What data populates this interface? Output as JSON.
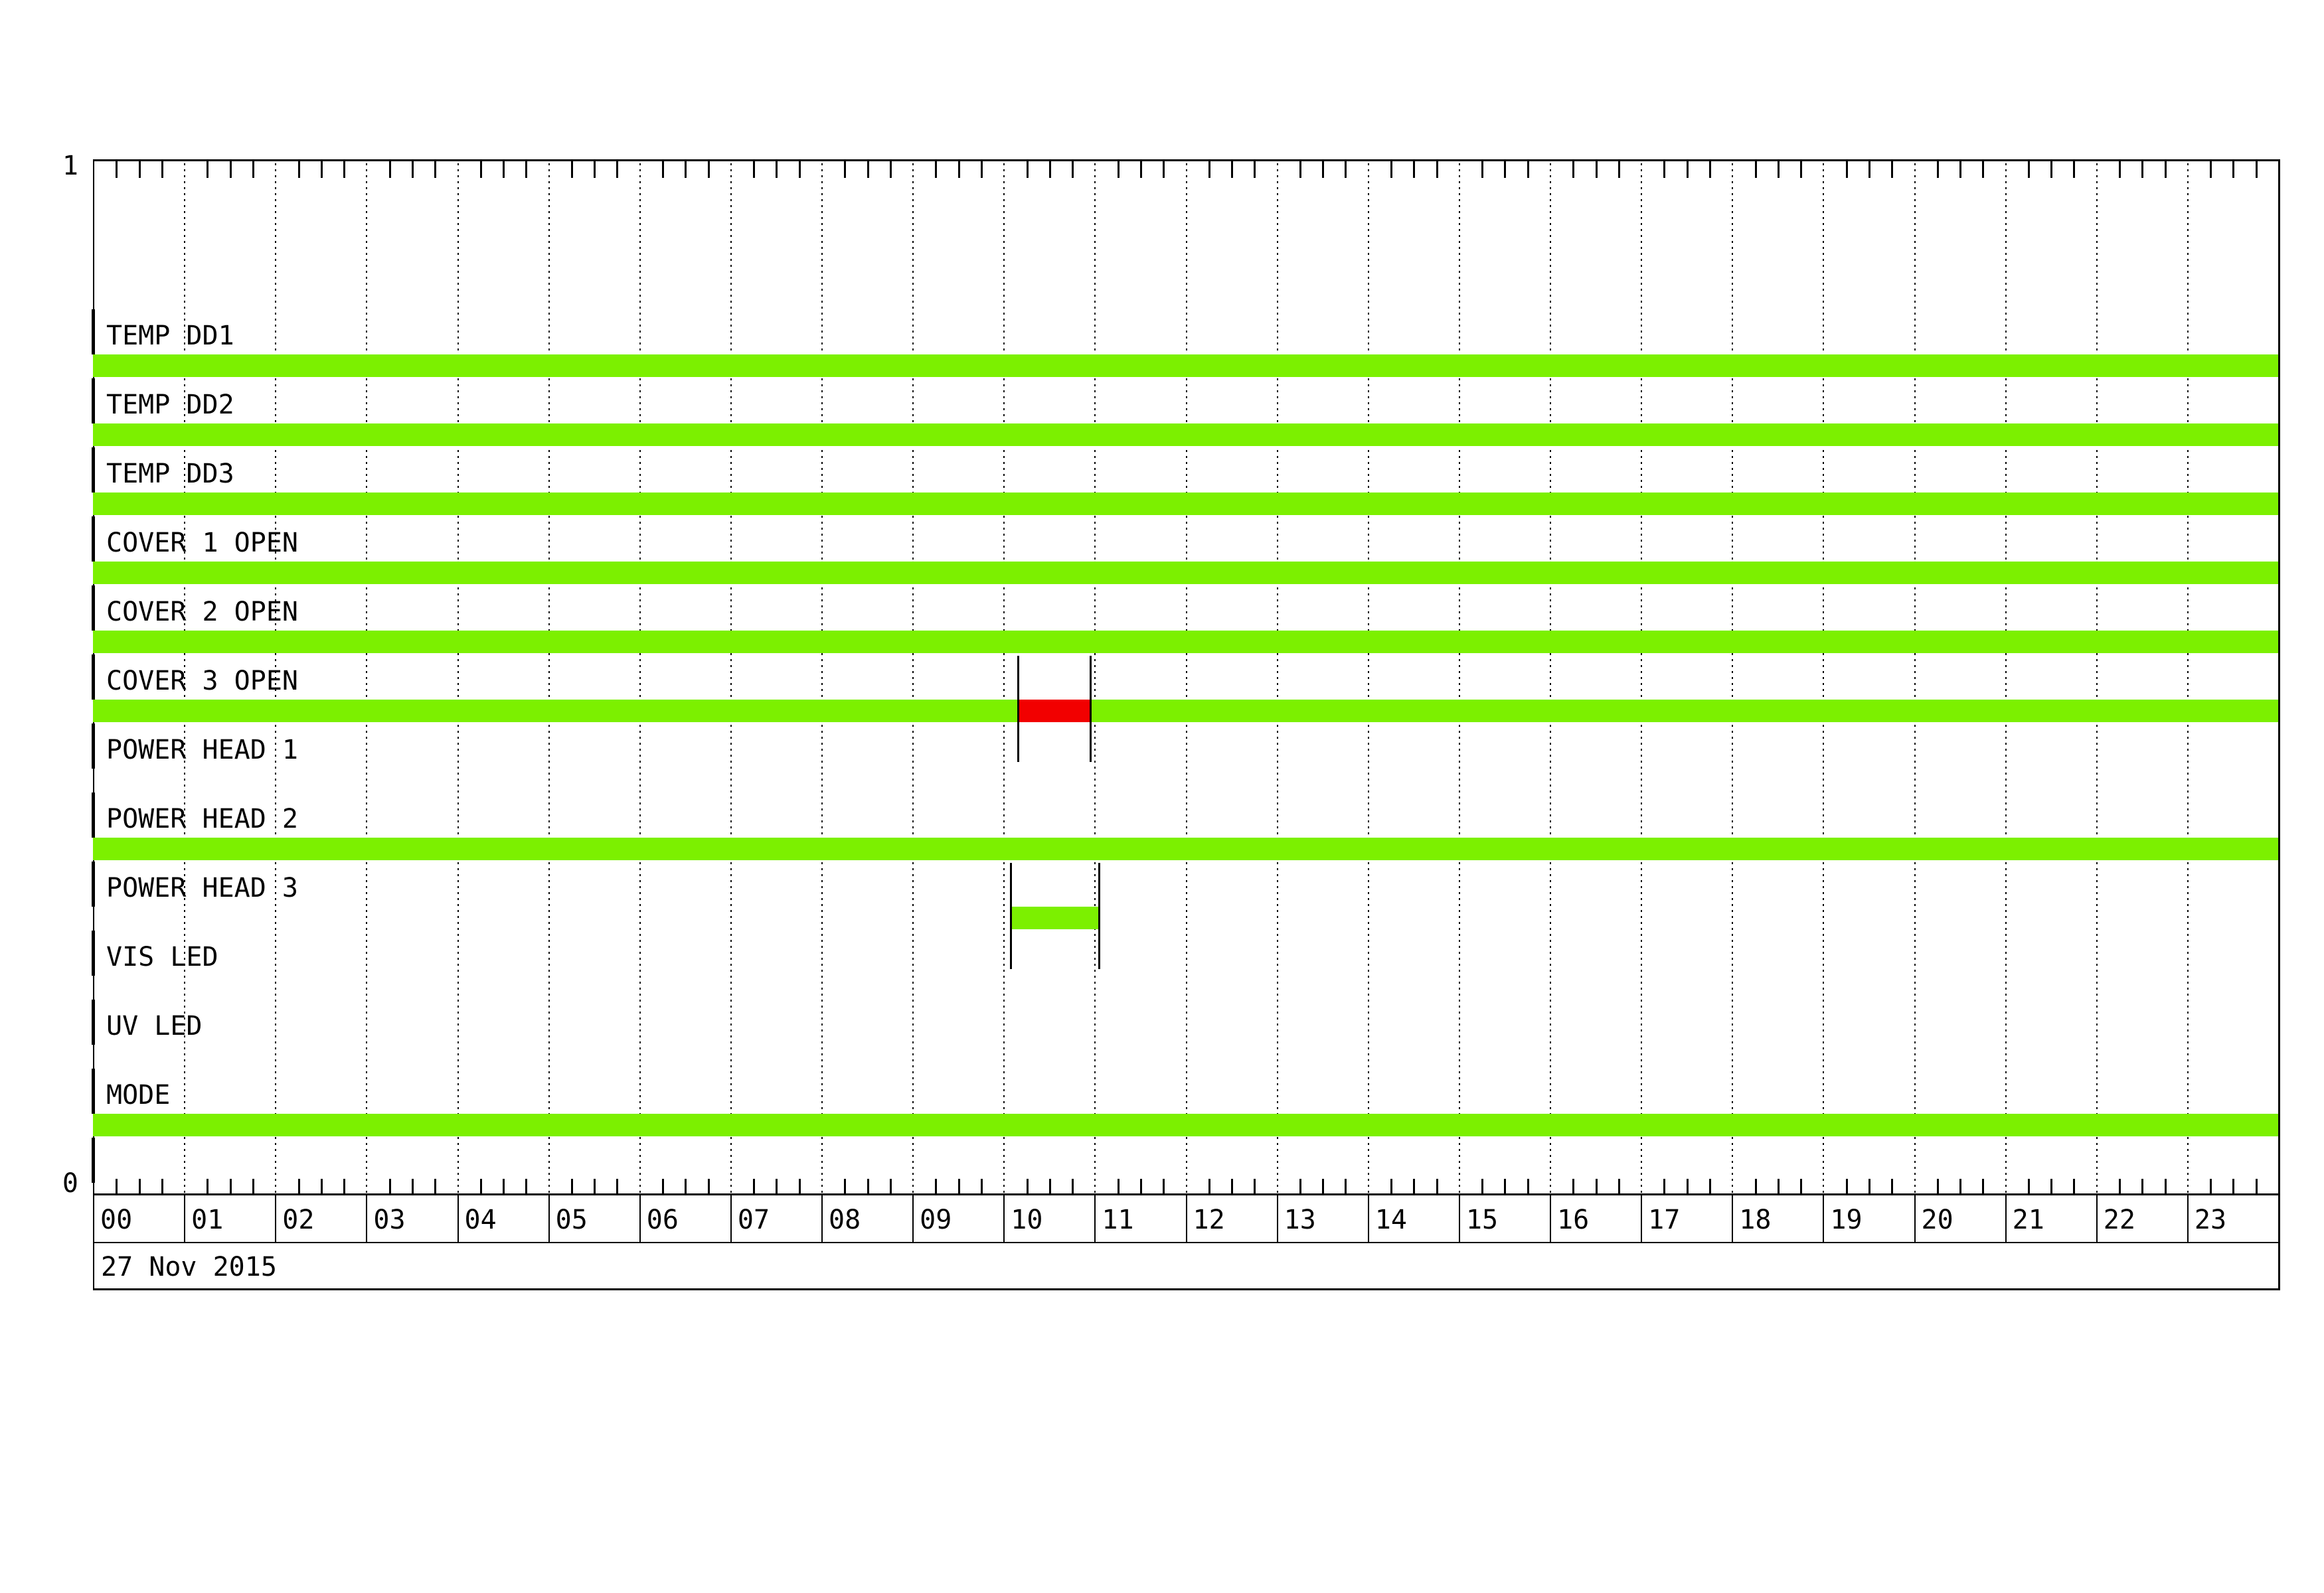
{
  "meta": {
    "background_color": "#ffffff",
    "description": "Daily digital status timeline chart, 12 instrument channels over 24 hours"
  },
  "axis": {
    "y_max_label": "1",
    "y_min_label": "0"
  },
  "colors": {
    "on_green": "#7cf000",
    "alarm_red": "#f20000",
    "grid": "#000000",
    "axis": "#000000"
  },
  "chart_data": {
    "type": "bar",
    "subtype": "digital-status-timeline",
    "title": "",
    "xlabel": "",
    "ylabel": "",
    "date": "27 Nov 2015",
    "x_unit": "hour of day",
    "xlim": [
      0,
      24
    ],
    "ylim": [
      0,
      1
    ],
    "y_tick_labels": [
      "0",
      "1"
    ],
    "x_tick_labels": [
      "00",
      "01",
      "02",
      "03",
      "04",
      "05",
      "06",
      "07",
      "08",
      "09",
      "10",
      "11",
      "12",
      "13",
      "14",
      "15",
      "16",
      "17",
      "18",
      "19",
      "20",
      "21",
      "22",
      "23"
    ],
    "x_minor_tick_minutes": 15,
    "grid": "hourly dotted vertical gridlines",
    "legend": "none",
    "rows": [
      {
        "label": "TEMP DD1",
        "segments": [
          {
            "start_hour": 0,
            "end_hour": 24,
            "color": "green"
          }
        ]
      },
      {
        "label": "TEMP DD2",
        "segments": [
          {
            "start_hour": 0,
            "end_hour": 24,
            "color": "green"
          }
        ]
      },
      {
        "label": "TEMP DD3",
        "segments": [
          {
            "start_hour": 0,
            "end_hour": 24,
            "color": "green"
          }
        ]
      },
      {
        "label": "COVER 1 OPEN",
        "segments": [
          {
            "start_hour": 0,
            "end_hour": 24,
            "color": "green"
          }
        ]
      },
      {
        "label": "COVER 2 OPEN",
        "segments": [
          {
            "start_hour": 0,
            "end_hour": 24,
            "color": "green"
          }
        ]
      },
      {
        "label": "COVER 3 OPEN",
        "segments": [
          {
            "start_hour": 0,
            "end_hour": 10.16,
            "color": "green"
          },
          {
            "start_hour": 10.16,
            "end_hour": 10.96,
            "color": "red"
          },
          {
            "start_hour": 10.96,
            "end_hour": 24,
            "color": "green"
          }
        ]
      },
      {
        "label": "POWER HEAD 1",
        "segments": []
      },
      {
        "label": "POWER HEAD 2",
        "segments": [
          {
            "start_hour": 0,
            "end_hour": 24,
            "color": "green"
          }
        ]
      },
      {
        "label": "POWER HEAD 3",
        "segments": [
          {
            "start_hour": 10.08,
            "end_hour": 11.05,
            "color": "green"
          }
        ]
      },
      {
        "label": "VIS LED",
        "segments": []
      },
      {
        "label": "UV LED",
        "segments": []
      },
      {
        "label": "MODE",
        "segments": [
          {
            "start_hour": 0,
            "end_hour": 24,
            "color": "green"
          }
        ]
      }
    ],
    "event_markers": [
      {
        "hour": 10.16,
        "from_row": 5,
        "to_row": 6,
        "note": "red alarm segment start, COVER 3 OPEN"
      },
      {
        "hour": 10.96,
        "from_row": 5,
        "to_row": 6,
        "note": "red alarm segment end, COVER 3 OPEN"
      },
      {
        "hour": 10.08,
        "from_row": 8,
        "to_row": 9,
        "note": "POWER HEAD 3 pulse start"
      },
      {
        "hour": 11.05,
        "from_row": 8,
        "to_row": 9,
        "note": "POWER HEAD 3 pulse end"
      }
    ]
  }
}
